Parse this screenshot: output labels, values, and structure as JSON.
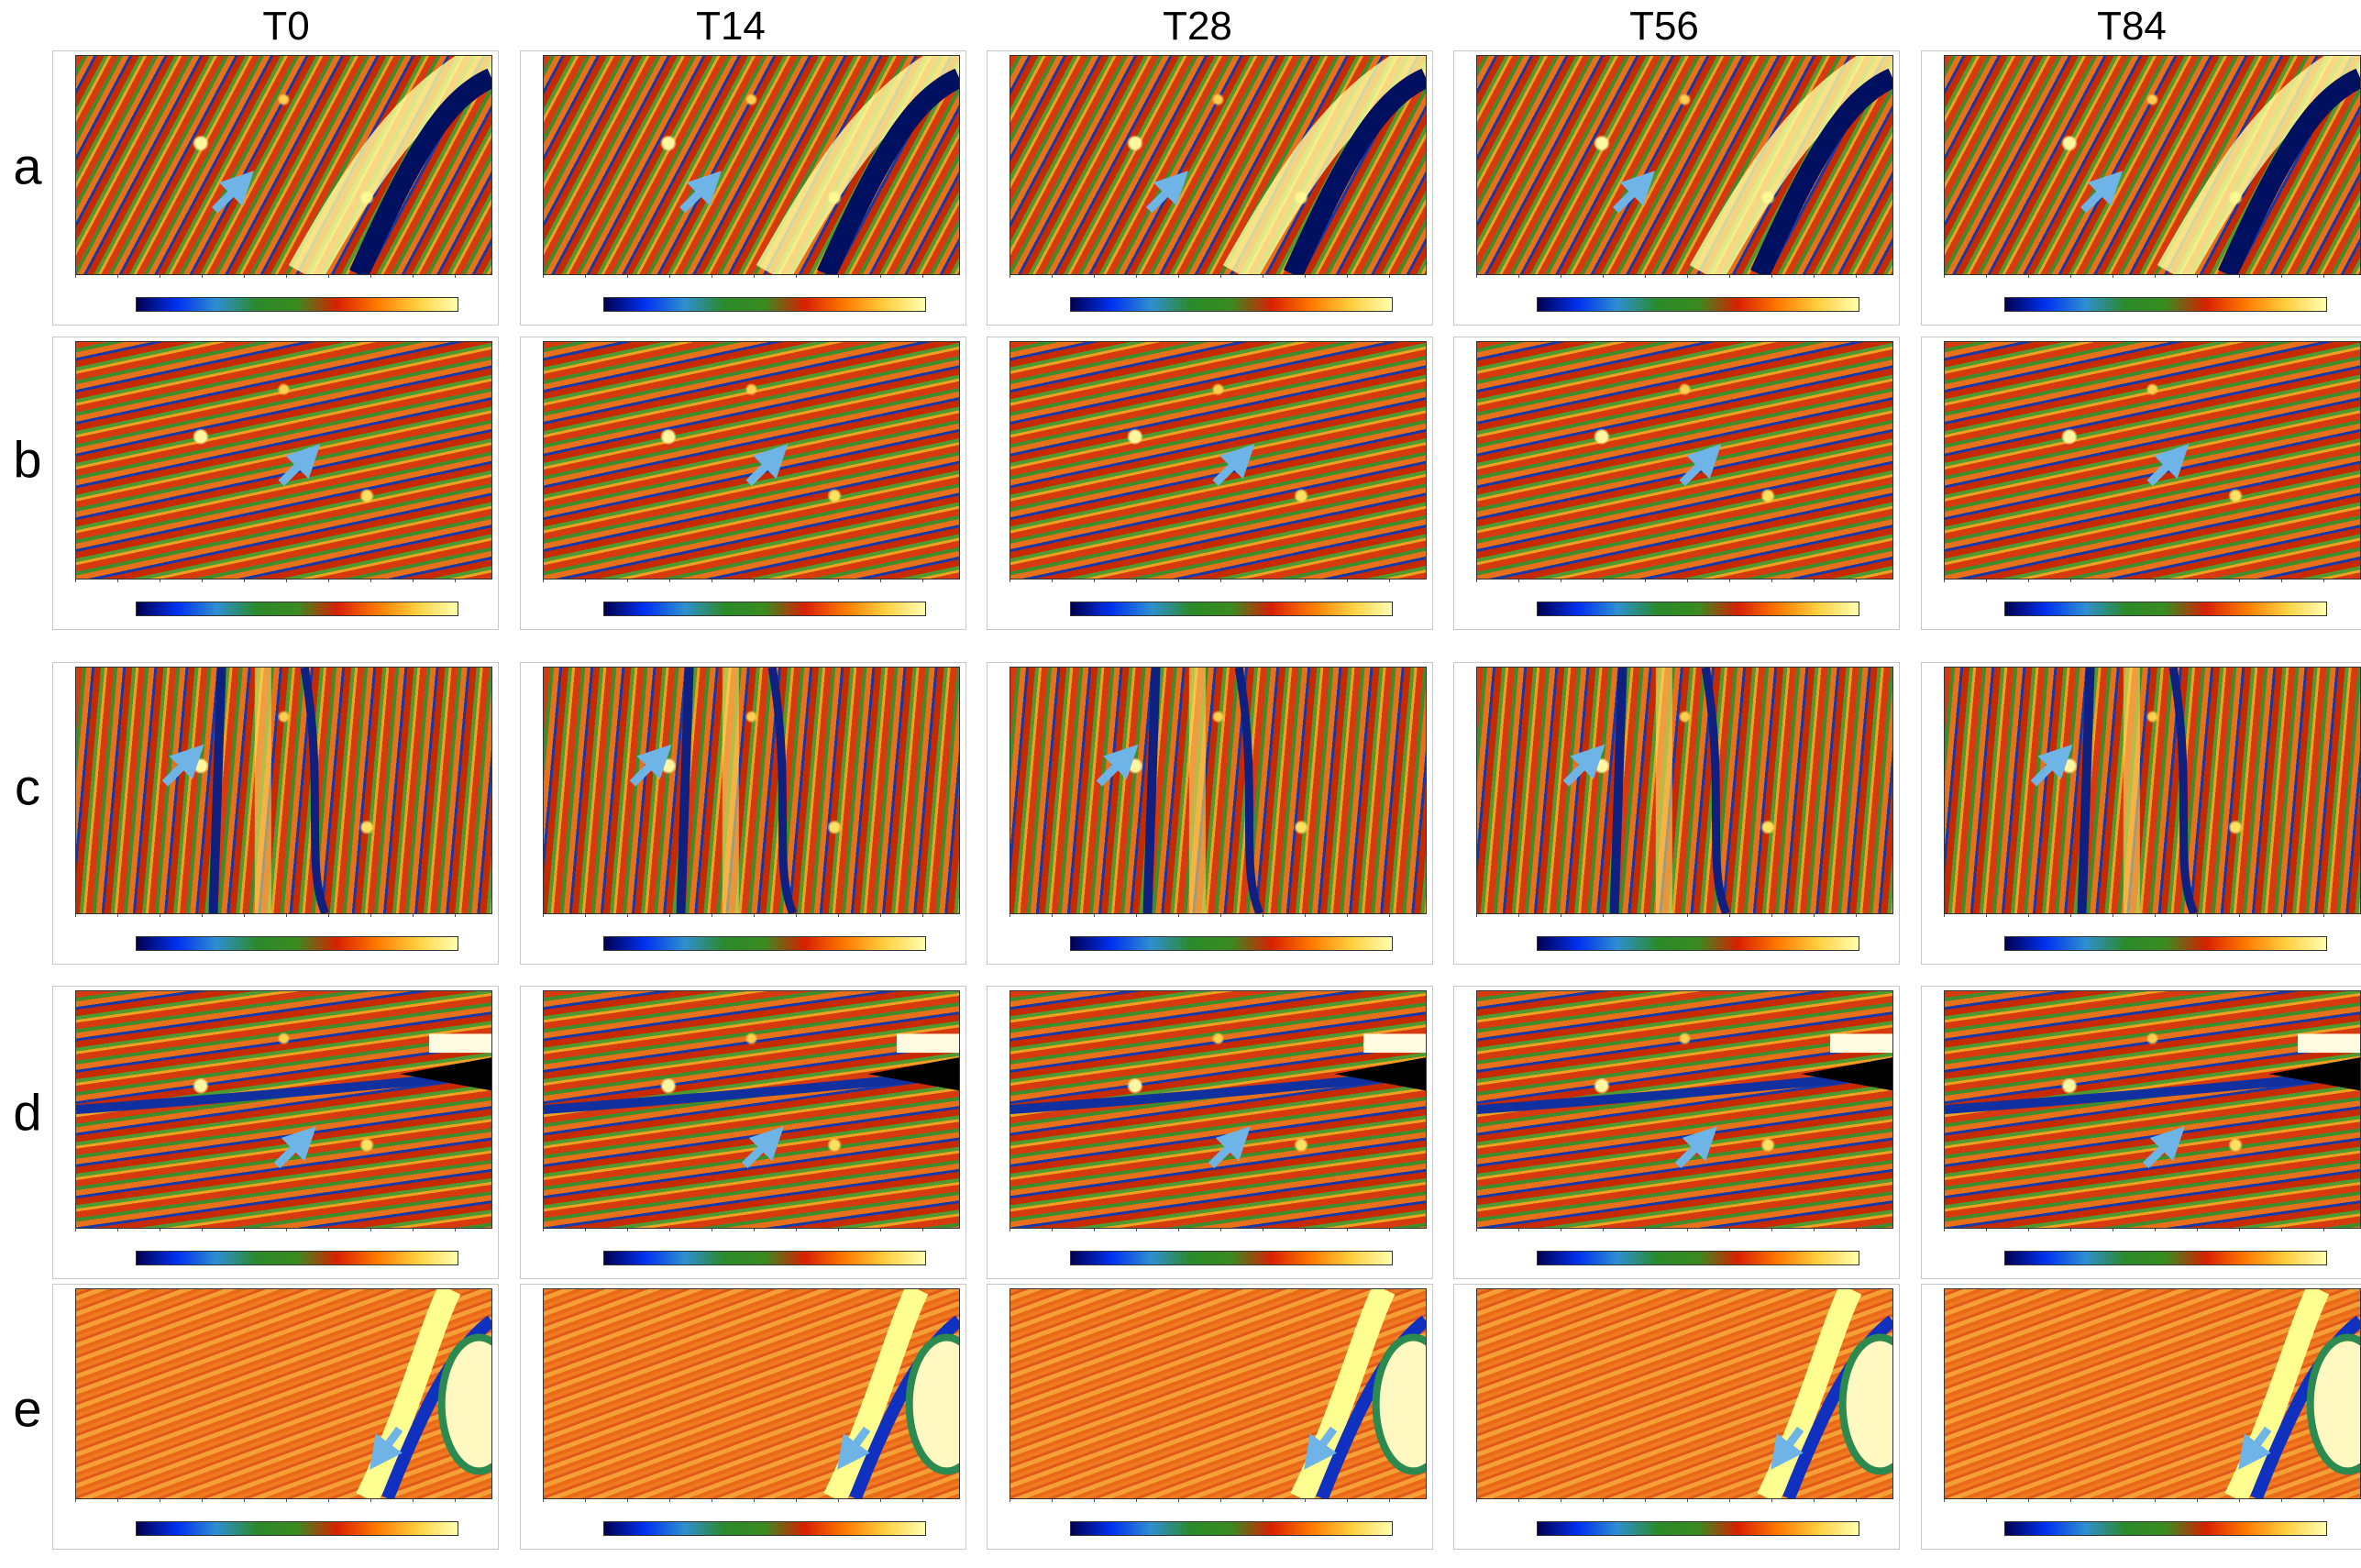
{
  "columns": [
    "T0",
    "T14",
    "T28",
    "T56",
    "T84"
  ],
  "rows": [
    "a",
    "b",
    "c",
    "d",
    "e"
  ]
}
